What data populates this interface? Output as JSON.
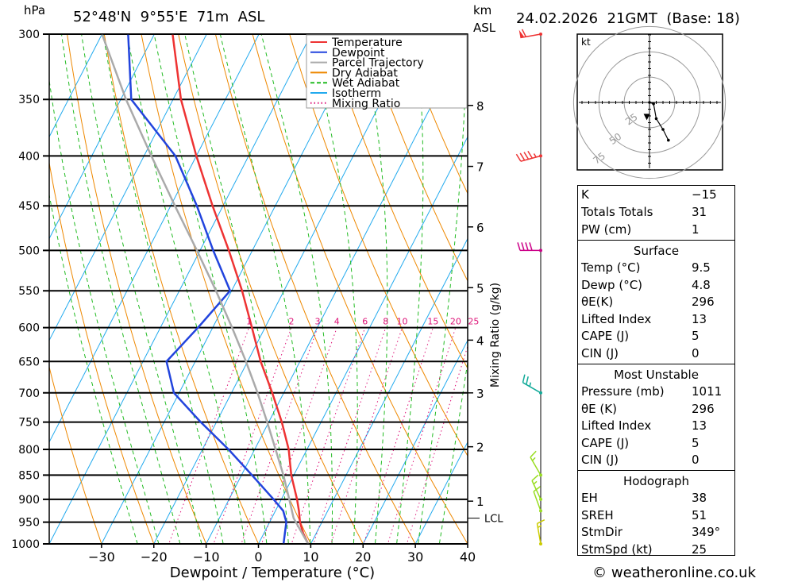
{
  "header": {
    "pressure_unit": "hPa",
    "location": "52°48'N  9°55'E  71m  ASL",
    "height_unit_top": "km",
    "height_unit_bottom": "ASL",
    "datetime": "24.02.2026  21GMT  (Base: 18)"
  },
  "chart_data": {
    "type": "line",
    "title": "52°48'N  9°55'E  71m  ASL",
    "xlabel": "Dewpoint / Temperature (°C)",
    "ylabel": "hPa",
    "xlim": [
      -40,
      40
    ],
    "ylim": [
      1000,
      300
    ],
    "skew_per_decade": 48,
    "x_ticks": [
      -30,
      -20,
      -10,
      0,
      10,
      20,
      30,
      40
    ],
    "x_tick_labels": [
      "−30",
      "−20",
      "−10",
      "0",
      "10",
      "20",
      "30",
      "40"
    ],
    "pressure_levels": [
      300,
      350,
      400,
      450,
      500,
      550,
      600,
      650,
      700,
      750,
      800,
      850,
      900,
      950,
      1000
    ],
    "height_ticks": [
      {
        "km": "1",
        "p": 904
      },
      {
        "km": "2",
        "p": 795
      },
      {
        "km": "3",
        "p": 700
      },
      {
        "km": "4",
        "p": 618
      },
      {
        "km": "5",
        "p": 546
      },
      {
        "km": "6",
        "p": 473
      },
      {
        "km": "7",
        "p": 410
      },
      {
        "km": "8",
        "p": 355
      }
    ],
    "lcl": {
      "label": "LCL",
      "p": 941
    },
    "legend": [
      {
        "name": "Temperature",
        "color": "#ee3333",
        "style": "solid"
      },
      {
        "name": "Dewpoint",
        "color": "#2244dd",
        "style": "solid"
      },
      {
        "name": "Parcel Trajectory",
        "color": "#aaaaaa",
        "style": "solid"
      },
      {
        "name": "Dry Adiabat",
        "color": "#ee8800",
        "style": "solid"
      },
      {
        "name": "Wet Adiabat",
        "color": "#22bb22",
        "style": "dashed"
      },
      {
        "name": "Isotherm",
        "color": "#22aaee",
        "style": "solid"
      },
      {
        "name": "Mixing Ratio",
        "color": "#dd1177",
        "style": "dotted"
      }
    ],
    "series": [
      {
        "name": "Temperature",
        "color": "#ee3333",
        "p": [
          1000,
          975,
          950,
          925,
          900,
          850,
          800,
          750,
          700,
          650,
          600,
          550,
          500,
          450,
          400,
          350,
          300
        ],
        "t": [
          9.5,
          7.5,
          5.8,
          4.5,
          3.0,
          -0.5,
          -3.5,
          -7.5,
          -12.2,
          -17.5,
          -22.5,
          -28.0,
          -34.5,
          -42.0,
          -50.0,
          -58.5,
          -66.5
        ]
      },
      {
        "name": "Dewpoint",
        "color": "#2244dd",
        "p": [
          1000,
          975,
          950,
          925,
          900,
          850,
          800,
          750,
          700,
          650,
          600,
          550,
          500,
          450,
          400,
          350,
          300
        ],
        "t": [
          4.8,
          4.0,
          3.2,
          1.5,
          -1.5,
          -8.0,
          -15.0,
          -23.0,
          -31.0,
          -35.5,
          -32.8,
          -30.3,
          -37.5,
          -45.0,
          -54.0,
          -68.0,
          -75.0
        ]
      },
      {
        "name": "Parcel Trajectory",
        "color": "#aaaaaa",
        "p": [
          1000,
          941,
          900,
          850,
          800,
          750,
          700,
          650,
          600,
          550,
          500,
          450,
          400,
          350,
          300
        ],
        "t": [
          9.5,
          4.2,
          1.5,
          -2.0,
          -6.0,
          -10.3,
          -15.0,
          -20.3,
          -26.3,
          -33.0,
          -40.6,
          -49.2,
          -58.6,
          -69.0,
          -80.0
        ]
      }
    ],
    "mixing_ratio_values": [
      1,
      2,
      3,
      4,
      6,
      8,
      10,
      15,
      20,
      25
    ],
    "mixing_ratio_labels": [
      "1",
      "2",
      "3",
      "4",
      "6",
      "8",
      "10",
      "15",
      "20",
      "25"
    ],
    "mixing_ratio_axis_label": "Mixing Ratio (g/kg)",
    "wind_barbs": [
      {
        "p": 300,
        "dir": 260,
        "kt": 60,
        "color": "#ee3333"
      },
      {
        "p": 400,
        "dir": 255,
        "kt": 45,
        "color": "#ee3333"
      },
      {
        "p": 500,
        "dir": 270,
        "kt": 40,
        "color": "#cc0088"
      },
      {
        "p": 700,
        "dir": 300,
        "kt": 25,
        "color": "#11aa99"
      },
      {
        "p": 850,
        "dir": 330,
        "kt": 15,
        "color": "#99dd22"
      },
      {
        "p": 900,
        "dir": 335,
        "kt": 15,
        "color": "#99dd22"
      },
      {
        "p": 925,
        "dir": 340,
        "kt": 12,
        "color": "#99dd22"
      },
      {
        "p": 1000,
        "dir": 350,
        "kt": 15,
        "color": "#cccc00"
      }
    ]
  },
  "hodograph": {
    "unit": "kt",
    "ring_labels": [
      "25",
      "50",
      "75"
    ],
    "trace_kt": [
      [
        0,
        0
      ],
      [
        3,
        -1
      ],
      [
        5,
        -12
      ],
      [
        10,
        -20
      ],
      [
        14,
        -28
      ]
    ],
    "storm_motion_kt": [
      -2,
      -12
    ]
  },
  "indices": {
    "k_label": "K",
    "k_value": "−15",
    "tt_label": "Totals Totals",
    "tt_value": "31",
    "pw_label": "PW (cm)",
    "pw_value": "1",
    "surface": {
      "title": "Surface",
      "rows": [
        {
          "label": "Temp (°C)",
          "value": "9.5"
        },
        {
          "label": "Dewp (°C)",
          "value": "4.8"
        },
        {
          "label": "θE(K)",
          "value": "296"
        },
        {
          "label": "Lifted Index",
          "value": "13"
        },
        {
          "label": "CAPE (J)",
          "value": "5"
        },
        {
          "label": "CIN (J)",
          "value": "0"
        }
      ]
    },
    "most_unstable": {
      "title": "Most Unstable",
      "rows": [
        {
          "label": "Pressure (mb)",
          "value": "1011"
        },
        {
          "label": "θE (K)",
          "value": "296"
        },
        {
          "label": "Lifted Index",
          "value": "13"
        },
        {
          "label": "CAPE (J)",
          "value": "5"
        },
        {
          "label": "CIN (J)",
          "value": "0"
        }
      ]
    },
    "hodograph_table": {
      "title": "Hodograph",
      "rows": [
        {
          "label": "EH",
          "value": "38"
        },
        {
          "label": "SREH",
          "value": "51"
        },
        {
          "label": "StmDir",
          "value": "349°"
        },
        {
          "label": "StmSpd (kt)",
          "value": "25"
        }
      ]
    }
  },
  "footer": {
    "copyright": "© weatheronline.co.uk"
  }
}
